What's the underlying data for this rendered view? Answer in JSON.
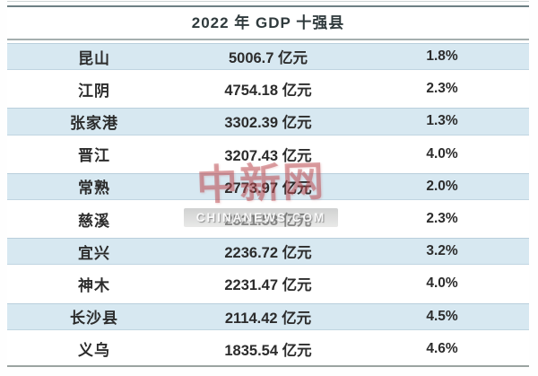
{
  "chart_data": {
    "type": "table",
    "title": "2022 年 GDP 十强县",
    "columns": [
      "county",
      "gdp",
      "growth"
    ],
    "rows": [
      {
        "name": "昆山",
        "gdp_display": "5006.7 亿元",
        "growth_display": "1.8%",
        "gdp_yi_yuan": 5006.7,
        "growth_pct": 1.8
      },
      {
        "name": "江阴",
        "gdp_display": "4754.18 亿元",
        "growth_display": "2.3%",
        "gdp_yi_yuan": 4754.18,
        "growth_pct": 2.3
      },
      {
        "name": "张家港",
        "gdp_display": "3302.39 亿元",
        "growth_display": "1.3%",
        "gdp_yi_yuan": 3302.39,
        "growth_pct": 1.3
      },
      {
        "name": "晋江",
        "gdp_display": "3207.43 亿元",
        "growth_display": "4.0%",
        "gdp_yi_yuan": 3207.43,
        "growth_pct": 4.0
      },
      {
        "name": "常熟",
        "gdp_display": "2773.97 亿元",
        "growth_display": "2.0%",
        "gdp_yi_yuan": 2773.97,
        "growth_pct": 2.0
      },
      {
        "name": "慈溪",
        "gdp_display": "2521.58 亿元",
        "growth_display": "2.3%",
        "gdp_yi_yuan": 2521.58,
        "growth_pct": 2.3
      },
      {
        "name": "宜兴",
        "gdp_display": "2236.72 亿元",
        "growth_display": "3.2%",
        "gdp_yi_yuan": 2236.72,
        "growth_pct": 3.2
      },
      {
        "name": "神木",
        "gdp_display": "2231.47 亿元",
        "growth_display": "4.0%",
        "gdp_yi_yuan": 2231.47,
        "growth_pct": 4.0
      },
      {
        "name": "长沙县",
        "gdp_display": "2114.42 亿元",
        "growth_display": "4.5%",
        "gdp_yi_yuan": 2114.42,
        "growth_pct": 4.5
      },
      {
        "name": "义乌",
        "gdp_display": "1835.54 亿元",
        "growth_display": "4.6%",
        "gdp_yi_yuan": 1835.54,
        "growth_pct": 4.6
      }
    ],
    "layout": {
      "shaded_row_indices": [
        0,
        2,
        4,
        6,
        8
      ],
      "row_shade_color": "#d7e8f1",
      "text_color": "#2c2c2c"
    }
  },
  "watermark": {
    "logo": "中新网",
    "site": "CHINANEWS.COM"
  }
}
